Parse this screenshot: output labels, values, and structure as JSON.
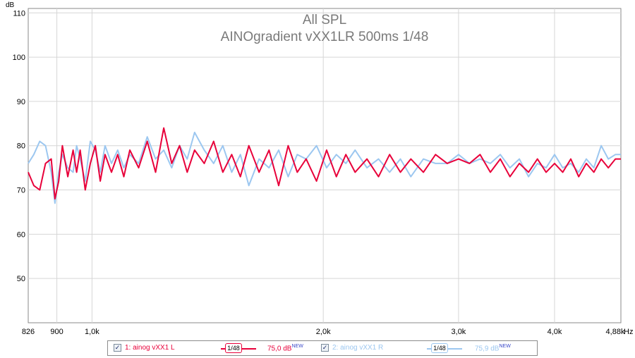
{
  "chart_data": {
    "type": "line",
    "title": "All SPL",
    "subtitle": "AINOgradient vXX1LR 500ms 1/48",
    "ylabel": "dB",
    "xlabel": "Hz",
    "x_scale": "log",
    "xlim": [
      826,
      4880
    ],
    "ylim": [
      40,
      111
    ],
    "yticks": [
      50,
      60,
      70,
      80,
      90,
      100,
      110
    ],
    "ytick_labels": [
      "50",
      "60",
      "70",
      "80",
      "90",
      "100",
      "110"
    ],
    "xticks": [
      826,
      900,
      1000,
      2000,
      3000,
      4000,
      4880
    ],
    "xtick_labels": [
      "826",
      "900",
      "1,0k",
      "2,0k",
      "3,0k",
      "4,0k",
      "4,88k"
    ],
    "grid": true,
    "legend_position": "bottom",
    "series": [
      {
        "name": "1: ainog vXX1 L",
        "color": "#e8003a",
        "smoothing": "1/48",
        "level": "75,0 dB",
        "level_tag": "NEW",
        "x": [
          826,
          840,
          855,
          870,
          885,
          895,
          905,
          915,
          930,
          945,
          955,
          965,
          980,
          995,
          1010,
          1025,
          1040,
          1060,
          1080,
          1100,
          1120,
          1150,
          1180,
          1210,
          1240,
          1270,
          1300,
          1330,
          1360,
          1400,
          1440,
          1480,
          1520,
          1560,
          1600,
          1650,
          1700,
          1750,
          1800,
          1850,
          1900,
          1960,
          2020,
          2080,
          2140,
          2200,
          2280,
          2360,
          2440,
          2520,
          2600,
          2700,
          2800,
          2900,
          3000,
          3100,
          3200,
          3300,
          3400,
          3500,
          3600,
          3700,
          3800,
          3900,
          4000,
          4100,
          4200,
          4300,
          4400,
          4500,
          4600,
          4700,
          4800,
          4880
        ],
        "y": [
          74,
          71,
          70,
          76,
          77,
          68,
          72,
          80,
          73,
          79,
          74,
          79,
          70,
          76,
          80,
          72,
          78,
          74,
          78,
          73,
          79,
          75,
          81,
          74,
          84,
          76,
          80,
          74,
          79,
          76,
          81,
          74,
          78,
          73,
          80,
          74,
          79,
          71,
          80,
          74,
          77,
          72,
          79,
          73,
          78,
          74,
          77,
          73,
          78,
          74,
          77,
          74,
          78,
          76,
          77,
          76,
          78,
          74,
          77,
          73,
          76,
          74,
          77,
          74,
          76,
          74,
          77,
          73,
          76,
          74,
          77,
          75,
          77,
          77
        ]
      },
      {
        "name": "2: ainog vXX1 R",
        "color": "#9cc7f0",
        "smoothing": "1/48",
        "level": "75,9 dB",
        "level_tag": "NEW",
        "x": [
          826,
          840,
          855,
          870,
          885,
          895,
          905,
          915,
          930,
          945,
          955,
          965,
          980,
          995,
          1010,
          1025,
          1040,
          1060,
          1080,
          1100,
          1120,
          1150,
          1180,
          1210,
          1240,
          1270,
          1300,
          1330,
          1360,
          1400,
          1440,
          1480,
          1520,
          1560,
          1600,
          1650,
          1700,
          1750,
          1800,
          1850,
          1900,
          1960,
          2020,
          2080,
          2140,
          2200,
          2280,
          2360,
          2440,
          2520,
          2600,
          2700,
          2800,
          2900,
          3000,
          3100,
          3200,
          3300,
          3400,
          3500,
          3600,
          3700,
          3800,
          3900,
          4000,
          4100,
          4200,
          4300,
          4400,
          4500,
          4600,
          4700,
          4800,
          4880
        ],
        "y": [
          76,
          78,
          81,
          80,
          74,
          67,
          74,
          78,
          75,
          74,
          80,
          77,
          72,
          81,
          79,
          74,
          80,
          76,
          79,
          75,
          78,
          76,
          82,
          77,
          79,
          75,
          80,
          77,
          83,
          79,
          76,
          80,
          74,
          78,
          71,
          77,
          75,
          79,
          73,
          78,
          77,
          80,
          75,
          78,
          76,
          79,
          75,
          77,
          74,
          77,
          73,
          77,
          76,
          76,
          78,
          76,
          77,
          76,
          78,
          75,
          77,
          73,
          76,
          75,
          78,
          75,
          76,
          74,
          77,
          75,
          80,
          77,
          78,
          78
        ]
      }
    ]
  }
}
